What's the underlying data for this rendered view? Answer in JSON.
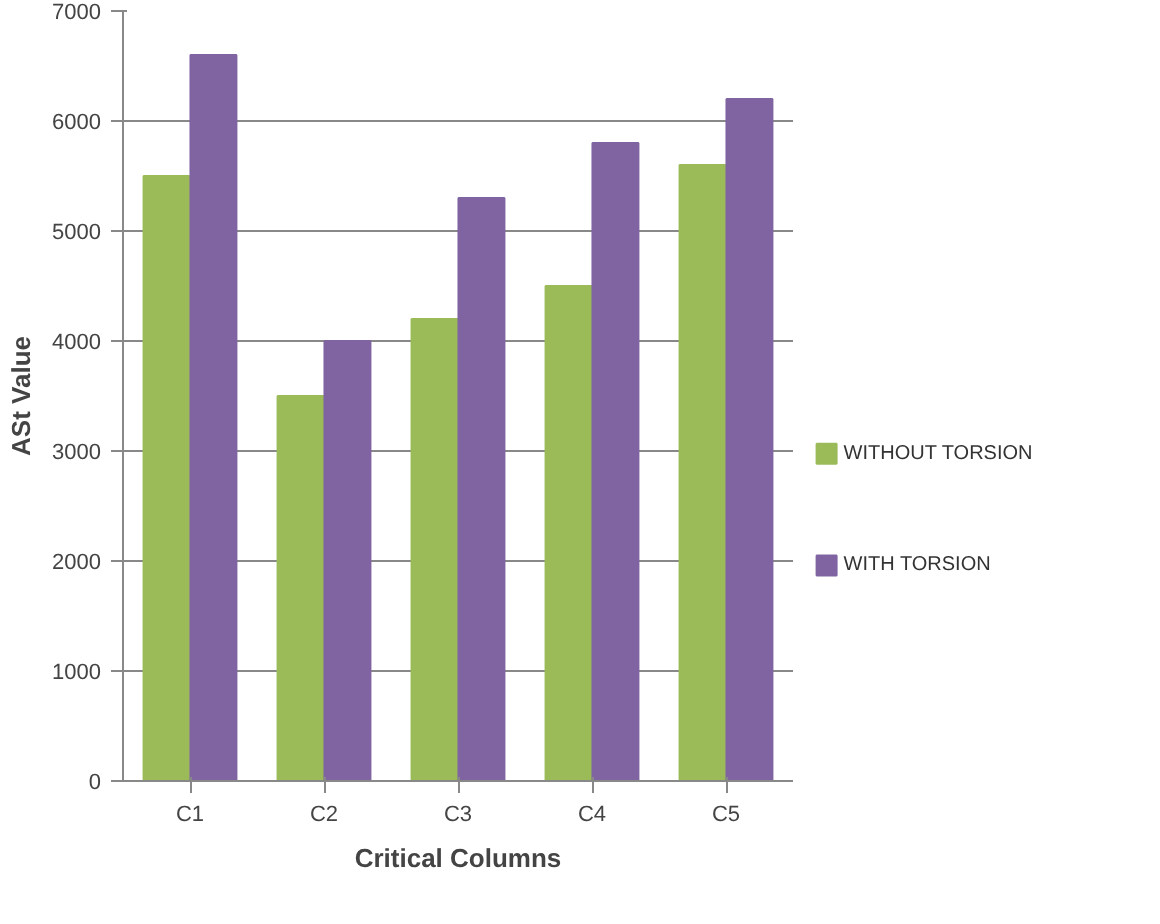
{
  "chart_data": {
    "type": "bar",
    "xlabel": "Critical Columns",
    "ylabel": "ASt Value",
    "categories": [
      "C1",
      "C2",
      "C3",
      "C4",
      "C5"
    ],
    "series": [
      {
        "name": "WITHOUT TORSION",
        "color": "#9bbb59",
        "values": [
          5500,
          3500,
          4200,
          4500,
          5600
        ]
      },
      {
        "name": "WITH TORSION",
        "color": "#8064a2",
        "values": [
          6600,
          4000,
          5300,
          5800,
          6200
        ]
      }
    ],
    "ylim": [
      0,
      7000
    ],
    "yticks": [
      0,
      1000,
      2000,
      3000,
      4000,
      5000,
      6000,
      7000
    ],
    "grid": "y",
    "legend": "right"
  }
}
